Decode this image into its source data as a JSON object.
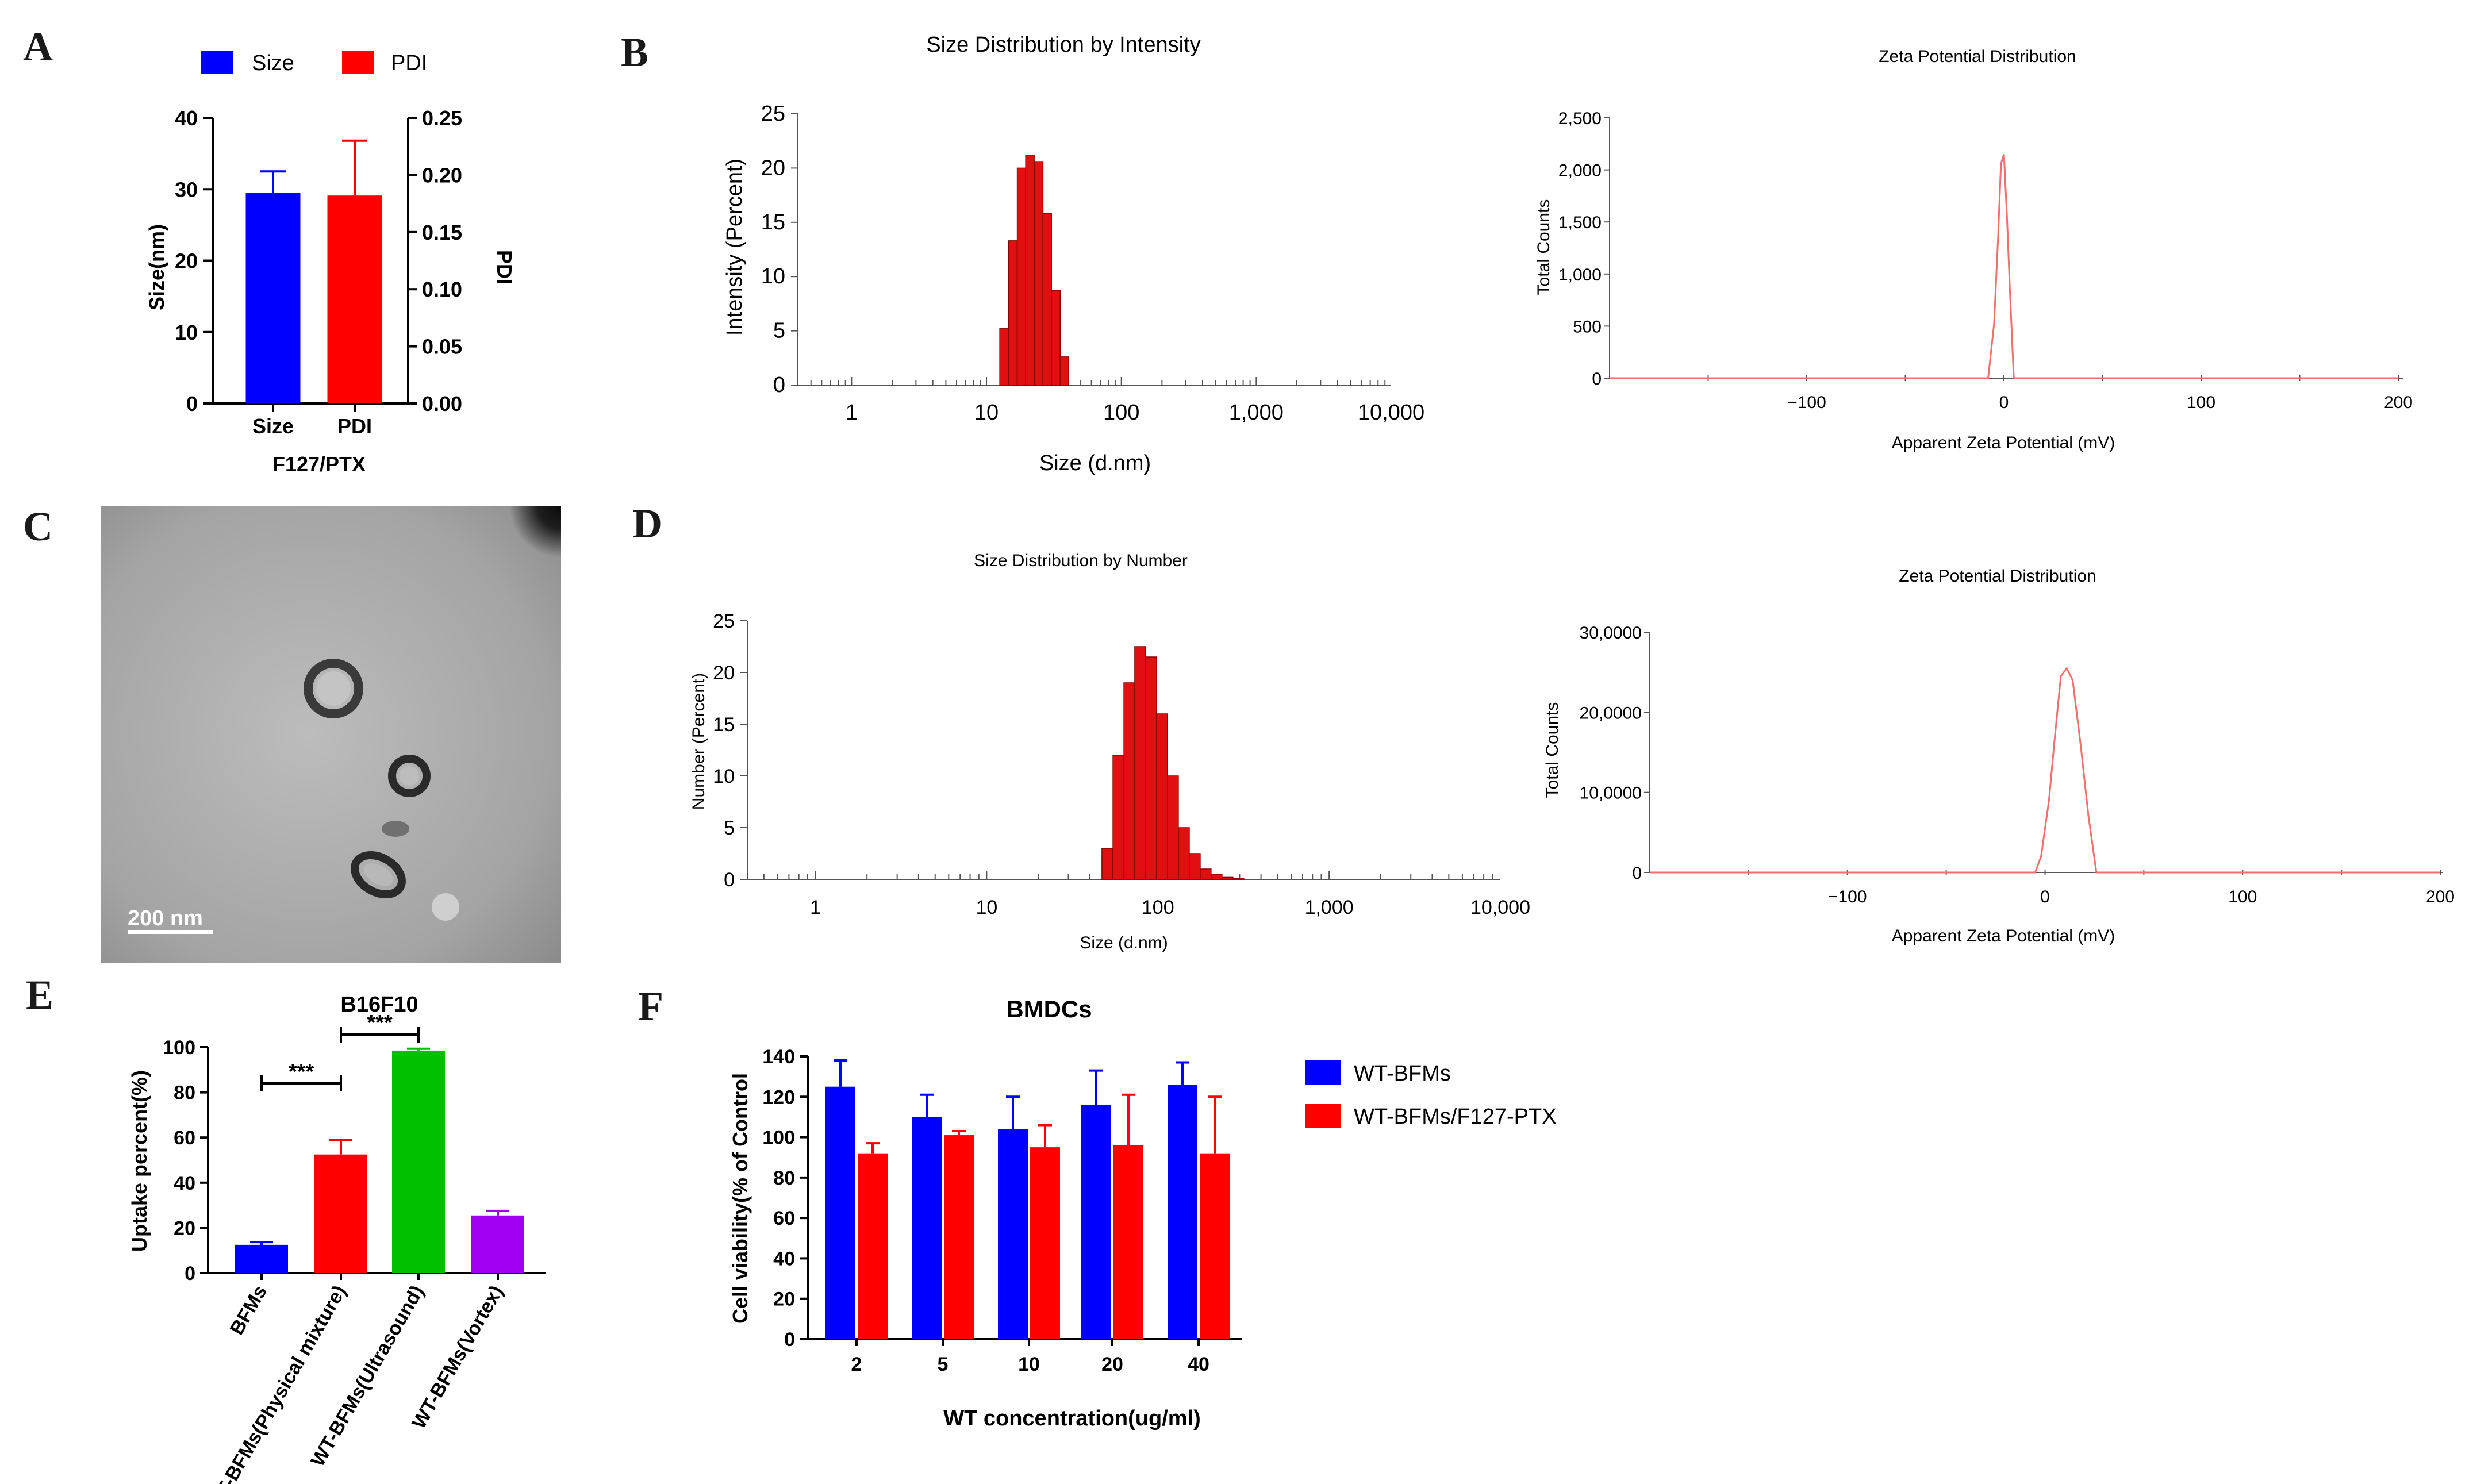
{
  "panels": {
    "a": "A",
    "b": "B",
    "c": "C",
    "d": "D",
    "e": "E",
    "f": "F"
  },
  "tem": {
    "scale_bar": "200 nm"
  },
  "colors": {
    "blue": "#0000ff",
    "red": "#ff0000",
    "green": "#00c000",
    "purple": "#a000f0",
    "dls_red": "#e01010",
    "zeta_line": "#f07070"
  },
  "chart_data": [
    {
      "id": "A",
      "type": "bar",
      "xlabel": "F127/PTX",
      "categories": [
        "Size",
        "PDI"
      ],
      "series": [
        {
          "name": "Size",
          "axis": "left",
          "value": 29.5,
          "error": 3.0
        },
        {
          "name": "PDI",
          "axis": "right",
          "value": 0.182,
          "error": 0.048
        }
      ],
      "ylabel": "Size(nm)",
      "ylim": [
        0,
        40
      ],
      "yticks": [
        "0",
        "10",
        "20",
        "30",
        "40"
      ],
      "y2label": "PDI",
      "y2lim": [
        0,
        0.25
      ],
      "y2ticks": [
        "0.00",
        "0.05",
        "0.10",
        "0.15",
        "0.20",
        "0.25"
      ],
      "legend": [
        "Size",
        "PDI"
      ],
      "legend_position": "top"
    },
    {
      "id": "B1",
      "type": "bar",
      "title": "Size Distribution by Intensity",
      "xlabel": "Size (d.nm)",
      "ylabel": "Intensity (Percent)",
      "xscale": "log",
      "xticks": [
        "1",
        "10",
        "100",
        "1,000",
        "10,000"
      ],
      "ylim": [
        0,
        25
      ],
      "yticks": [
        "0",
        "5",
        "10",
        "15",
        "20",
        "25"
      ],
      "x": [
        13.5,
        15.7,
        18.2,
        21.0,
        24.4,
        28.2,
        32.7,
        37.8
      ],
      "values": [
        5.2,
        13.3,
        20.0,
        21.2,
        20.6,
        15.8,
        8.7,
        2.6
      ]
    },
    {
      "id": "B2",
      "type": "line",
      "title": "Zeta Potential Distribution",
      "xlabel": "Apparent Zeta Potential (mV)",
      "ylabel": "Total Counts",
      "xlim": [
        -200,
        200
      ],
      "xticks": [
        "−100",
        "0",
        "100",
        "200"
      ],
      "ylim": [
        0,
        2500
      ],
      "yticks": [
        "0",
        "500",
        "1,000",
        "1,500",
        "2,000",
        "2,500"
      ],
      "x": [
        -200,
        -150,
        -100,
        -50,
        -8,
        -5,
        -3,
        -1.5,
        0,
        1.5,
        3,
        5,
        50,
        100,
        150,
        200
      ],
      "y": [
        0,
        0,
        0,
        0,
        0,
        520,
        1330,
        2060,
        2150,
        1570,
        860,
        0,
        0,
        0,
        0,
        0
      ]
    },
    {
      "id": "D1",
      "type": "bar",
      "title": "Size Distribution by Number",
      "xlabel": "Size (d.nm)",
      "ylabel": "Number (Percent)",
      "xscale": "log",
      "xticks": [
        "1",
        "10",
        "100",
        "1,000",
        "10,000"
      ],
      "ylim": [
        0,
        25
      ],
      "yticks": [
        "0",
        "5",
        "10",
        "15",
        "20",
        "25"
      ],
      "x": [
        50.7,
        58.8,
        68.1,
        78.8,
        91.3,
        105.7,
        122.4,
        141.8,
        164.2,
        190.1,
        220.2,
        255.0,
        295.3
      ],
      "values": [
        3.0,
        12.0,
        19.0,
        22.5,
        21.5,
        16.0,
        10.0,
        5.0,
        2.5,
        1.0,
        0.5,
        0.2,
        0.1
      ]
    },
    {
      "id": "D2",
      "type": "line",
      "title": "Zeta Potential Distribution",
      "xlabel": "Apparent Zeta Potential (mV)",
      "ylabel": "Total Counts",
      "xlim": [
        -200,
        200
      ],
      "xticks": [
        "−100",
        "0",
        "100",
        "200"
      ],
      "ylim": [
        0,
        300000
      ],
      "yticks": [
        "0",
        "10,0000",
        "20,0000",
        "30,0000"
      ],
      "x": [
        -200,
        -150,
        -100,
        -50,
        -5,
        -2,
        2,
        5,
        8,
        11,
        14,
        18,
        22,
        26,
        50,
        100,
        150,
        200
      ],
      "y": [
        0,
        0,
        0,
        0,
        0,
        20000,
        90000,
        170000,
        245000,
        255000,
        240000,
        160000,
        70000,
        0,
        0,
        0,
        0,
        0
      ]
    },
    {
      "id": "E",
      "type": "bar",
      "title": "B16F10",
      "ylabel": "Uptake percent(%)",
      "ylim": [
        0,
        100
      ],
      "yticks": [
        "0",
        "20",
        "40",
        "60",
        "80",
        "100"
      ],
      "categories": [
        "BFMs",
        "WT-BFMs(Physical mixture)",
        "WT-BFMs(Ultrasound)",
        "WT-BFMs(Vortex)"
      ],
      "values": [
        12.5,
        52.5,
        98.5,
        25.5
      ],
      "errors": [
        1.2,
        6.5,
        0.8,
        2.0
      ],
      "significance": [
        {
          "from": 0,
          "to": 1,
          "label": "***"
        },
        {
          "from": 1,
          "to": 2,
          "label": "***"
        }
      ]
    },
    {
      "id": "F",
      "type": "bar",
      "title": "BMDCs",
      "xlabel": "WT concentration(ug/ml)",
      "ylabel": "Cell viability(% of Control",
      "ylim": [
        0,
        140
      ],
      "yticks": [
        "0",
        "20",
        "40",
        "60",
        "80",
        "100",
        "120",
        "140"
      ],
      "categories": [
        "2",
        "5",
        "10",
        "20",
        "40"
      ],
      "series": [
        {
          "name": "WT-BFMs",
          "values": [
            125,
            110,
            104,
            116,
            126
          ],
          "errors": [
            13,
            11,
            16,
            17,
            11
          ]
        },
        {
          "name": "WT-BFMs/F127-PTX",
          "values": [
            92,
            101,
            95,
            96,
            92
          ],
          "errors": [
            5,
            2,
            11,
            25,
            28
          ]
        }
      ],
      "legend_position": "right"
    }
  ]
}
